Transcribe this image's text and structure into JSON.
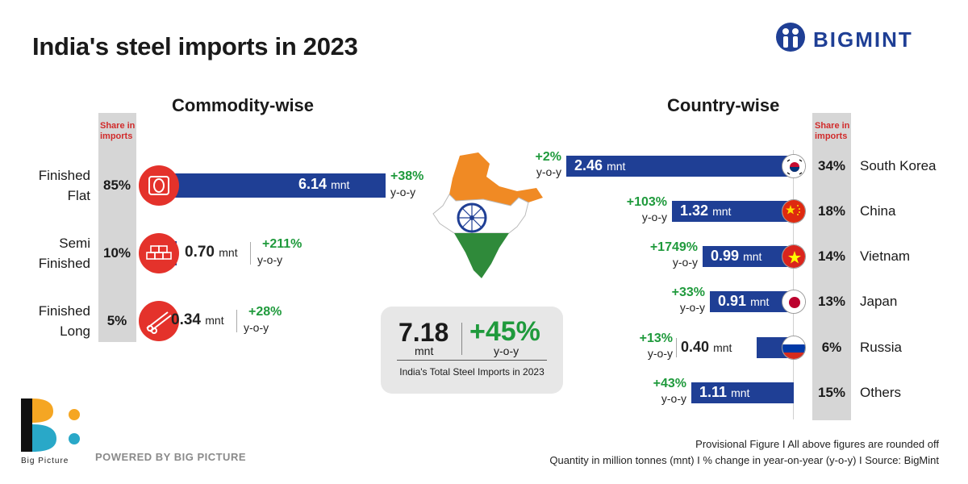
{
  "header": {
    "title": "India's steel imports in 2023",
    "brand": "BIGMINT"
  },
  "commodity": {
    "section_title": "Commodity-wise",
    "share_header": [
      "Share in",
      "imports"
    ],
    "unit": "mnt",
    "rows": [
      {
        "label": [
          "Finished",
          "Flat"
        ],
        "share": "85%",
        "value": "6.14",
        "yoy": "+38%",
        "yoy_label": "y-o-y",
        "icon": "steel-coil-icon"
      },
      {
        "label": [
          "Semi",
          "Finished"
        ],
        "share": "10%",
        "value": "0.70",
        "yoy": "+211%",
        "yoy_label": "y-o-y",
        "icon": "steel-billets-icon"
      },
      {
        "label": [
          "Finished",
          "Long"
        ],
        "share": "5%",
        "value": "0.34",
        "yoy": "+28%",
        "yoy_label": "y-o-y",
        "icon": "steel-bars-icon"
      }
    ]
  },
  "country": {
    "section_title": "Country-wise",
    "share_header": [
      "Share in",
      "imports"
    ],
    "unit": "mnt",
    "rows": [
      {
        "name": "South Korea",
        "share": "34%",
        "value": "2.46",
        "yoy": "+2%",
        "yoy_label": "y-o-y",
        "flag": "south-korea-flag-icon"
      },
      {
        "name": "China",
        "share": "18%",
        "value": "1.32",
        "yoy": "+103%",
        "yoy_label": "y-o-y",
        "flag": "china-flag-icon"
      },
      {
        "name": "Vietnam",
        "share": "14%",
        "value": "0.99",
        "yoy": "+1749%",
        "yoy_label": "y-o-y",
        "flag": "vietnam-flag-icon"
      },
      {
        "name": "Japan",
        "share": "13%",
        "value": "0.91",
        "yoy": "+33%",
        "yoy_label": "y-o-y",
        "flag": "japan-flag-icon"
      },
      {
        "name": "Russia",
        "share": "6%",
        "value": "0.40",
        "yoy": "+13%",
        "yoy_label": "y-o-y",
        "flag": "russia-flag-icon"
      },
      {
        "name": "Others",
        "share": "15%",
        "value": "1.11",
        "yoy": "+43%",
        "yoy_label": "y-o-y",
        "flag": ""
      }
    ]
  },
  "total": {
    "value": "7.18",
    "unit": "mnt",
    "yoy": "+45%",
    "yoy_label": "y-o-y",
    "caption": "India's Total Steel Imports in 2023"
  },
  "footer": {
    "line1": "Provisional Figure  I  All above figures are rounded off",
    "line2": "Quantity in million tonnes (mnt)  I  % change in year-on-year (y-o-y)  I  Source: BigMint",
    "powered": "POWERED BY BIG PICTURE",
    "logo_caption": "Big Picture"
  },
  "colors": {
    "bar": "#1f3f95",
    "positive": "#1f9a3c",
    "accent_red": "#e4322b",
    "share_col": "#d6d6d6"
  },
  "chart_data": [
    {
      "type": "bar",
      "title": "Commodity-wise",
      "unit": "mnt",
      "categories": [
        "Finished Flat",
        "Semi Finished",
        "Finished Long"
      ],
      "values": [
        6.14,
        0.7,
        0.34
      ],
      "share_pct": [
        85,
        10,
        5
      ],
      "yoy_pct": [
        38,
        211,
        28
      ],
      "orientation": "horizontal"
    },
    {
      "type": "bar",
      "title": "Country-wise",
      "unit": "mnt",
      "categories": [
        "South Korea",
        "China",
        "Vietnam",
        "Japan",
        "Russia",
        "Others"
      ],
      "values": [
        2.46,
        1.32,
        0.99,
        0.91,
        0.4,
        1.11
      ],
      "share_pct": [
        34,
        18,
        14,
        13,
        6,
        15
      ],
      "yoy_pct": [
        2,
        103,
        1749,
        33,
        13,
        43
      ],
      "orientation": "horizontal"
    }
  ]
}
